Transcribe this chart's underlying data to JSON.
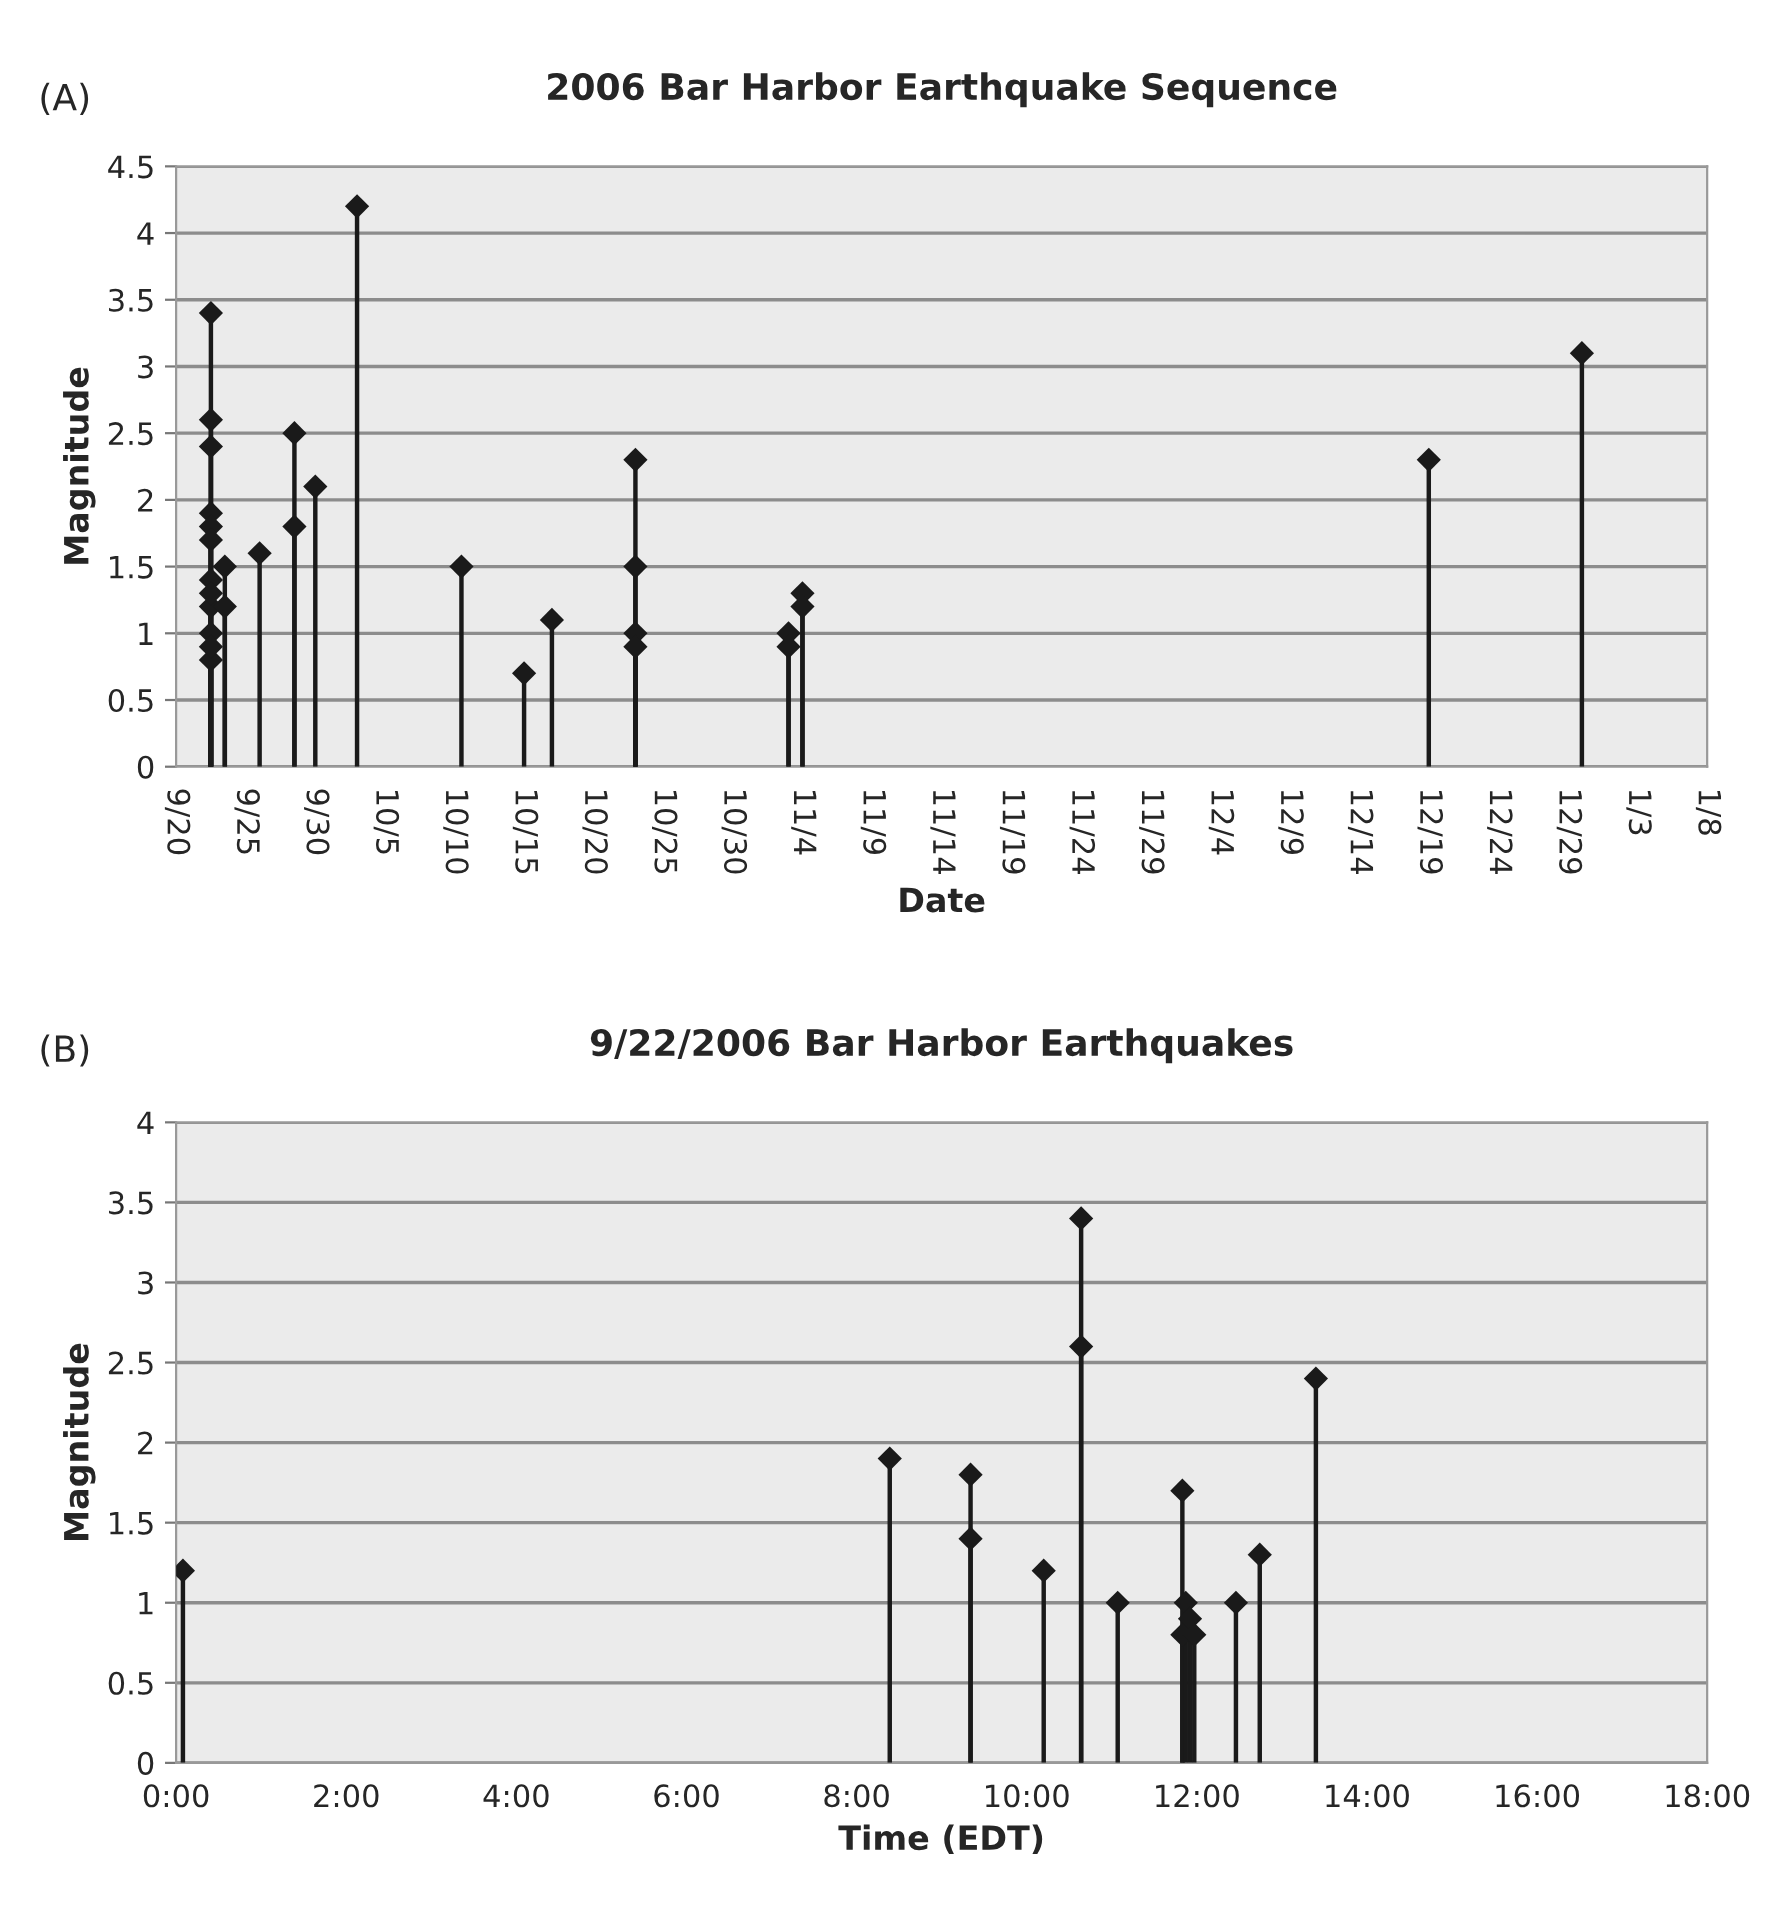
{
  "chart_data": [
    {
      "type": "lollipop",
      "title": "2006 Bar Harbor Earthquake Sequence",
      "xlabel": "Date",
      "ylabel": "Magnitude",
      "annotations": [
        "(A)"
      ],
      "x": [
        "2006-09-22T12:00",
        "2006-09-22T12:00",
        "2006-09-22T12:00",
        "2006-09-22T12:00",
        "2006-09-22T12:00",
        "2006-09-22T12:00",
        "2006-09-22T12:00",
        "2006-09-22T12:00",
        "2006-09-22T12:00",
        "2006-09-22T12:00",
        "2006-09-22T12:00",
        "2006-09-22T12:00",
        "2006-09-23T12:00",
        "2006-09-23T12:00",
        "2006-09-26",
        "2006-09-28T12:00",
        "2006-09-28T12:00",
        "2006-09-30",
        "2006-10-03",
        "2006-10-10T12:00",
        "2006-10-15",
        "2006-10-17",
        "2006-10-23",
        "2006-10-23",
        "2006-10-23",
        "2006-10-23",
        "2006-11-03",
        "2006-11-03",
        "2006-11-04",
        "2006-11-04",
        "2006-12-19",
        "2006-12-30"
      ],
      "values": [
        1.2,
        1.9,
        1.8,
        1.4,
        3.4,
        2.6,
        1.0,
        1.7,
        0.8,
        0.9,
        1.3,
        2.4,
        1.5,
        1.2,
        1.6,
        2.5,
        1.8,
        2.1,
        4.2,
        1.5,
        0.7,
        1.1,
        2.3,
        1.5,
        1.0,
        0.9,
        1.0,
        0.9,
        1.3,
        1.2,
        2.3,
        3.1
      ],
      "color": "#1a1a1a",
      "marker": "diamond",
      "grid": "y",
      "xlim": [
        "2006-09-20",
        "2007-01-08"
      ],
      "xticks": [
        {
          "value": "2006-09-20",
          "label": "9/20"
        },
        {
          "value": "2006-09-25",
          "label": "9/25"
        },
        {
          "value": "2006-09-30",
          "label": "9/30"
        },
        {
          "value": "2006-10-05",
          "label": "10/5"
        },
        {
          "value": "2006-10-10",
          "label": "10/10"
        },
        {
          "value": "2006-10-15",
          "label": "10/15"
        },
        {
          "value": "2006-10-20",
          "label": "10/20"
        },
        {
          "value": "2006-10-25",
          "label": "10/25"
        },
        {
          "value": "2006-10-30",
          "label": "10/30"
        },
        {
          "value": "2006-11-04",
          "label": "11/4"
        },
        {
          "value": "2006-11-09",
          "label": "11/9"
        },
        {
          "value": "2006-11-14",
          "label": "11/14"
        },
        {
          "value": "2006-11-19",
          "label": "11/19"
        },
        {
          "value": "2006-11-24",
          "label": "11/24"
        },
        {
          "value": "2006-11-29",
          "label": "11/29"
        },
        {
          "value": "2006-12-04",
          "label": "12/4"
        },
        {
          "value": "2006-12-09",
          "label": "12/9"
        },
        {
          "value": "2006-12-14",
          "label": "12/14"
        },
        {
          "value": "2006-12-19",
          "label": "12/19"
        },
        {
          "value": "2006-12-24",
          "label": "12/24"
        },
        {
          "value": "2006-12-29",
          "label": "12/29"
        },
        {
          "value": "2007-01-03",
          "label": "1/3"
        },
        {
          "value": "2007-01-08",
          "label": "1/8"
        }
      ],
      "ylim": [
        0,
        4.5
      ],
      "yticks": [
        0,
        0.5,
        1,
        1.5,
        2,
        2.5,
        3,
        3.5,
        4,
        4.5
      ]
    },
    {
      "type": "lollipop",
      "title": "9/22/2006 Bar Harbor Earthquakes",
      "xlabel": "Time (EDT)",
      "ylabel": "Magnitude",
      "annotations": [
        "(B)"
      ],
      "x": [
        0.08,
        8.39,
        9.34,
        9.34,
        10.2,
        10.64,
        10.64,
        11.07,
        11.83,
        11.83,
        11.87,
        11.92,
        11.97,
        12.46,
        12.74,
        13.4
      ],
      "values": [
        1.2,
        1.9,
        1.8,
        1.4,
        1.2,
        3.4,
        2.6,
        1.0,
        1.7,
        0.8,
        1.0,
        0.9,
        0.8,
        1.0,
        1.3,
        2.4
      ],
      "color": "#1a1a1a",
      "marker": "diamond",
      "grid": "y",
      "xlim": [
        0,
        18
      ],
      "xticks": [
        {
          "value": 0,
          "label": "0:00"
        },
        {
          "value": 2,
          "label": "2:00"
        },
        {
          "value": 4,
          "label": "4:00"
        },
        {
          "value": 6,
          "label": "6:00"
        },
        {
          "value": 8,
          "label": "8:00"
        },
        {
          "value": 10,
          "label": "10:00"
        },
        {
          "value": 12,
          "label": "12:00"
        },
        {
          "value": 14,
          "label": "14:00"
        },
        {
          "value": 16,
          "label": "16:00"
        },
        {
          "value": 18,
          "label": "18:00"
        }
      ],
      "ylim": [
        0,
        4
      ],
      "yticks": [
        0,
        0.5,
        1,
        1.5,
        2,
        2.5,
        3,
        3.5,
        4
      ]
    }
  ]
}
